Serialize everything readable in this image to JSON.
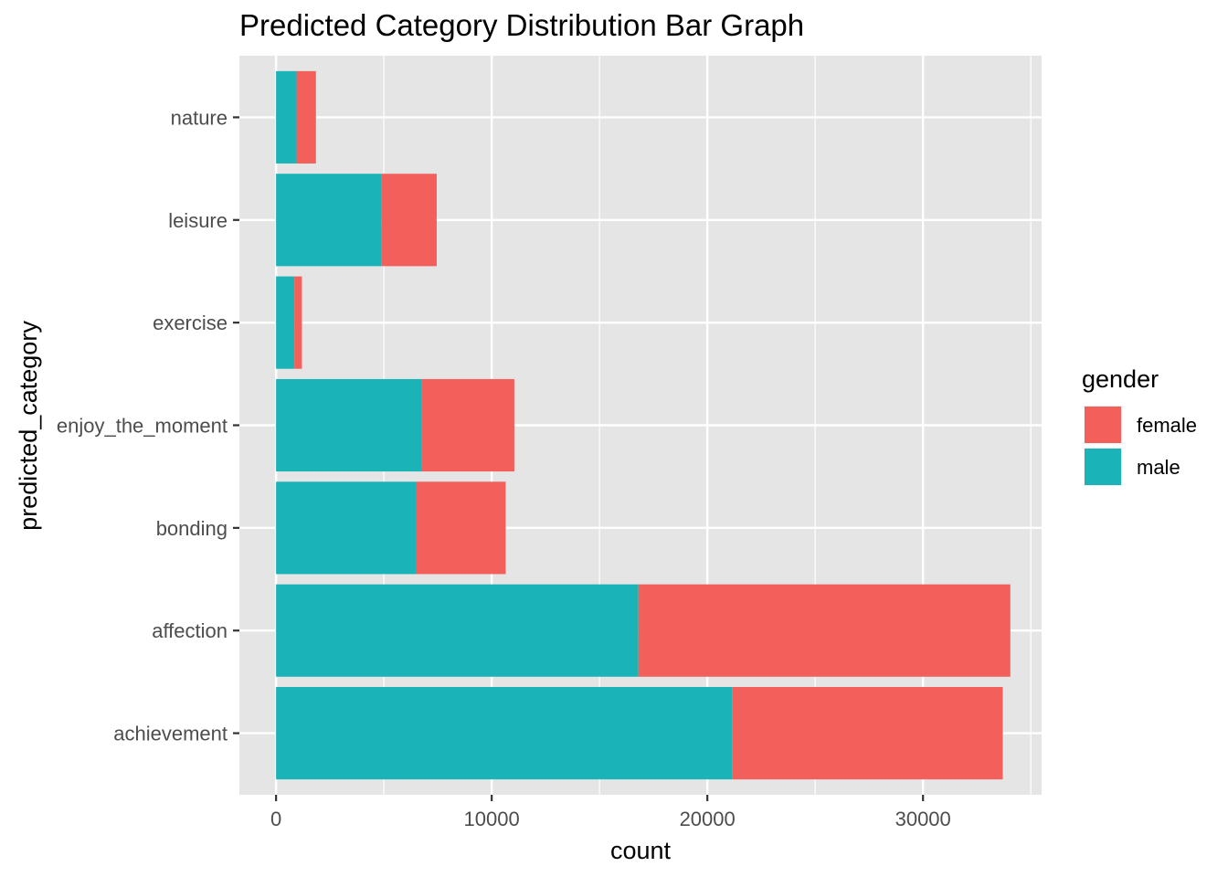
{
  "chart_data": {
    "type": "bar",
    "orientation": "horizontal",
    "stacked": true,
    "title": "Predicted Category Distribution Bar Graph",
    "xlabel": "count",
    "ylabel": "predicted_category",
    "categories": [
      "achievement",
      "affection",
      "bonding",
      "enjoy_the_moment",
      "exercise",
      "leisure",
      "nature"
    ],
    "series": [
      {
        "name": "male",
        "color": "#19B3B8",
        "values": [
          21150,
          16800,
          6500,
          6750,
          850,
          4900,
          950
        ]
      },
      {
        "name": "female",
        "color": "#F35F5B",
        "values": [
          12550,
          17250,
          4150,
          4300,
          350,
          2550,
          900
        ]
      }
    ],
    "xlim": [
      -1700,
      35500
    ],
    "xticks": [
      0,
      10000,
      20000,
      30000
    ],
    "grid": true,
    "legend": {
      "title": "gender",
      "position": "right",
      "entries": [
        {
          "label": "female",
          "color": "#F35F5B"
        },
        {
          "label": "male",
          "color": "#19B3B8"
        }
      ]
    }
  }
}
